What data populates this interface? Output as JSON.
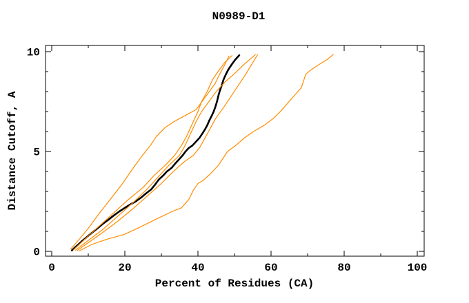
{
  "chart_data": {
    "type": "line",
    "title": "N0989-D1",
    "xlabel": "Percent of Residues (CA)",
    "ylabel": "Distance Cutoff, A",
    "xlim": [
      0,
      100
    ],
    "ylim": [
      0,
      10
    ],
    "x_major_ticks": [
      0,
      20,
      40,
      60,
      80,
      100
    ],
    "x_minor_ticks": [
      10,
      30,
      50,
      70,
      90
    ],
    "y_major_ticks": [
      0,
      5,
      10
    ],
    "y_minor_ticks": [
      1,
      2,
      3,
      4,
      6,
      7,
      8,
      9
    ],
    "grid": false,
    "legend_position": "none",
    "frame_color": "#000000",
    "background_color": "#ffffff",
    "series": [
      {
        "name": "model-1-black",
        "color": "#000000",
        "stroke_width": 2.6,
        "points": [
          [
            5.5,
            0.05
          ],
          [
            6.5,
            0.22
          ],
          [
            7.5,
            0.38
          ],
          [
            8.5,
            0.55
          ],
          [
            9.5,
            0.7
          ],
          [
            11,
            0.93
          ],
          [
            12.5,
            1.15
          ],
          [
            14,
            1.38
          ],
          [
            15.5,
            1.58
          ],
          [
            17,
            1.8
          ],
          [
            18.5,
            2.0
          ],
          [
            20,
            2.18
          ],
          [
            21.5,
            2.35
          ],
          [
            23,
            2.5
          ],
          [
            24.5,
            2.7
          ],
          [
            25.8,
            2.9
          ],
          [
            27.2,
            3.1
          ],
          [
            28.3,
            3.35
          ],
          [
            29.3,
            3.6
          ],
          [
            30.5,
            3.8
          ],
          [
            31.5,
            4.0
          ],
          [
            32.8,
            4.18
          ],
          [
            33.8,
            4.4
          ],
          [
            34.8,
            4.6
          ],
          [
            35.8,
            4.8
          ],
          [
            36.6,
            5.0
          ],
          [
            37.5,
            5.18
          ],
          [
            38.5,
            5.3
          ],
          [
            39.5,
            5.5
          ],
          [
            40.5,
            5.7
          ],
          [
            41.2,
            5.9
          ],
          [
            41.9,
            6.1
          ],
          [
            42.5,
            6.3
          ],
          [
            43.1,
            6.55
          ],
          [
            43.8,
            6.8
          ],
          [
            44.3,
            7.0
          ],
          [
            44.8,
            7.25
          ],
          [
            45.2,
            7.5
          ],
          [
            45.6,
            7.8
          ],
          [
            46.0,
            8.05
          ],
          [
            46.5,
            8.3
          ],
          [
            47.0,
            8.6
          ],
          [
            47.6,
            8.85
          ],
          [
            48.3,
            9.1
          ],
          [
            49.2,
            9.35
          ],
          [
            50.2,
            9.6
          ],
          [
            51.3,
            9.82
          ]
        ]
      },
      {
        "name": "other-model-a",
        "color": "#ff8c00",
        "stroke_width": 1.2,
        "points": [
          [
            5.2,
            0.12
          ],
          [
            7.5,
            0.6
          ],
          [
            10,
            1.15
          ],
          [
            13,
            1.9
          ],
          [
            16,
            2.6
          ],
          [
            19,
            3.3
          ],
          [
            22,
            4.1
          ],
          [
            24.8,
            4.8
          ],
          [
            27,
            5.3
          ],
          [
            28.6,
            5.75
          ],
          [
            31,
            6.2
          ],
          [
            33.5,
            6.5
          ],
          [
            36.5,
            6.8
          ],
          [
            39.5,
            7.1
          ],
          [
            41.5,
            7.6
          ],
          [
            43.5,
            8.1
          ],
          [
            44.7,
            8.4
          ],
          [
            46,
            8.9
          ],
          [
            47.2,
            9.3
          ],
          [
            48.5,
            9.78
          ]
        ]
      },
      {
        "name": "other-model-b",
        "color": "#ff8c00",
        "stroke_width": 1.2,
        "points": [
          [
            6,
            0.08
          ],
          [
            9,
            0.6
          ],
          [
            12,
            1.1
          ],
          [
            15,
            1.6
          ],
          [
            18,
            2.1
          ],
          [
            21,
            2.6
          ],
          [
            25,
            3.2
          ],
          [
            28,
            3.8
          ],
          [
            31,
            4.3
          ],
          [
            33.6,
            4.8
          ],
          [
            35.5,
            5.3
          ],
          [
            37,
            5.8
          ],
          [
            38.5,
            6.4
          ],
          [
            40,
            7.0
          ],
          [
            41,
            7.5
          ],
          [
            42.5,
            8.0
          ],
          [
            44,
            8.6
          ],
          [
            45.5,
            9.0
          ],
          [
            47.3,
            9.45
          ],
          [
            49.3,
            9.8
          ]
        ]
      },
      {
        "name": "other-model-c",
        "color": "#ff8c00",
        "stroke_width": 1.2,
        "points": [
          [
            6.5,
            0.06
          ],
          [
            10,
            0.55
          ],
          [
            14,
            1.1
          ],
          [
            18,
            1.75
          ],
          [
            22,
            2.4
          ],
          [
            26,
            3.1
          ],
          [
            29.5,
            3.8
          ],
          [
            32,
            4.3
          ],
          [
            34.9,
            4.8
          ],
          [
            36.5,
            5.3
          ],
          [
            38,
            5.9
          ],
          [
            39.5,
            6.5
          ],
          [
            41,
            7.0
          ],
          [
            43,
            7.5
          ],
          [
            45,
            8.0
          ],
          [
            47.5,
            8.5
          ],
          [
            50,
            8.9
          ],
          [
            52.5,
            9.35
          ],
          [
            55.7,
            9.85
          ]
        ]
      },
      {
        "name": "other-model-d",
        "color": "#ff8c00",
        "stroke_width": 1.2,
        "points": [
          [
            7,
            0.05
          ],
          [
            10.5,
            0.5
          ],
          [
            14,
            0.95
          ],
          [
            18,
            1.5
          ],
          [
            22,
            2.1
          ],
          [
            26,
            2.75
          ],
          [
            30,
            3.4
          ],
          [
            33,
            3.95
          ],
          [
            36,
            4.45
          ],
          [
            38.7,
            4.8
          ],
          [
            40.5,
            5.2
          ],
          [
            42,
            5.7
          ],
          [
            43.5,
            6.2
          ],
          [
            45,
            6.7
          ],
          [
            47,
            7.2
          ],
          [
            49,
            7.75
          ],
          [
            51,
            8.3
          ],
          [
            53,
            8.85
          ],
          [
            54.5,
            9.3
          ],
          [
            56.3,
            9.85
          ]
        ]
      },
      {
        "name": "other-model-outlier",
        "color": "#ff8c00",
        "stroke_width": 1.2,
        "points": [
          [
            7.5,
            0.02
          ],
          [
            11,
            0.35
          ],
          [
            15,
            0.6
          ],
          [
            19.8,
            0.84
          ],
          [
            24,
            1.2
          ],
          [
            29.2,
            1.67
          ],
          [
            33,
            2.0
          ],
          [
            35.5,
            2.18
          ],
          [
            37.5,
            2.6
          ],
          [
            38.7,
            3.05
          ],
          [
            40,
            3.4
          ],
          [
            41.5,
            3.56
          ],
          [
            43.5,
            3.9
          ],
          [
            45.6,
            4.31
          ],
          [
            48.1,
            5.0
          ],
          [
            50.6,
            5.34
          ],
          [
            52.8,
            5.69
          ],
          [
            55,
            5.98
          ],
          [
            58.2,
            6.32
          ],
          [
            60.7,
            6.67
          ],
          [
            62.6,
            7.01
          ],
          [
            64.5,
            7.41
          ],
          [
            67,
            7.93
          ],
          [
            68.3,
            8.2
          ],
          [
            69.5,
            8.87
          ],
          [
            71,
            9.1
          ],
          [
            73.5,
            9.4
          ],
          [
            75.5,
            9.62
          ],
          [
            77,
            9.86
          ]
        ]
      }
    ]
  }
}
